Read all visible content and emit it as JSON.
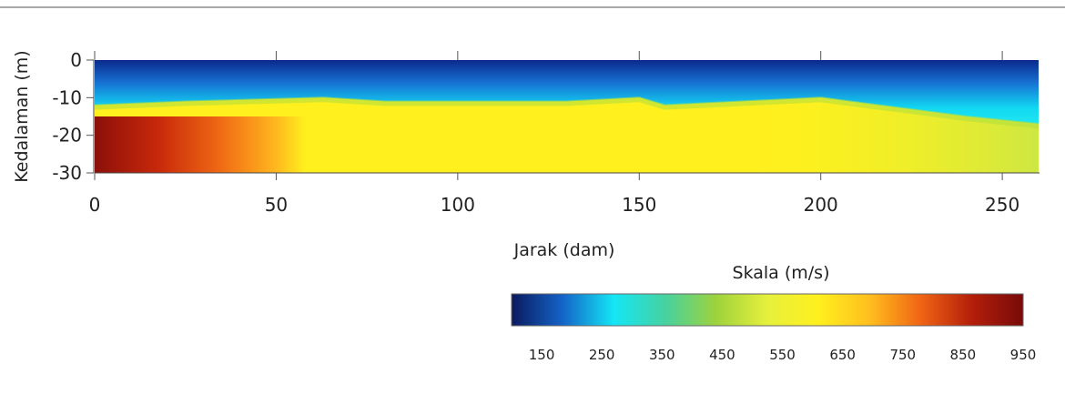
{
  "chart_data": {
    "type": "heatmap",
    "title": "",
    "xlabel": "Jarak (dam)",
    "ylabel": "Kedalaman (m)",
    "xlim": [
      0,
      260
    ],
    "ylim": [
      -30,
      0
    ],
    "xticks": [
      "0",
      "50",
      "100",
      "150",
      "200",
      "250"
    ],
    "yticks": [
      "0",
      "-10",
      "-20",
      "-30"
    ],
    "grid": false,
    "colorbar": {
      "title": "Skala (m/s)",
      "range": [
        100,
        950
      ],
      "ticks": [
        "150",
        "250",
        "350",
        "450",
        "550",
        "650",
        "750",
        "850",
        "950"
      ],
      "colormap": [
        "#0a1a5e",
        "#1464c8",
        "#14e6f5",
        "#46d2a0",
        "#9ed23c",
        "#e6f03c",
        "#fff01e",
        "#ffbe1e",
        "#f06414",
        "#b41e0a",
        "#780a0a"
      ]
    },
    "layers": [
      {
        "name": "near-surface",
        "velocity_range": [
          150,
          300
        ],
        "depth_to_interface": [
          -12,
          -11,
          -10,
          -11,
          -11,
          -10,
          -12,
          -10,
          -11,
          -15,
          -17
        ],
        "x": [
          0,
          25,
          63,
          80,
          130,
          150,
          157,
          200,
          208,
          240,
          260
        ]
      },
      {
        "name": "intermediate",
        "velocity_approx": 580
      },
      {
        "name": "deep-west",
        "x_range": [
          0,
          58
        ],
        "velocity_range": [
          650,
          950
        ]
      }
    ]
  }
}
